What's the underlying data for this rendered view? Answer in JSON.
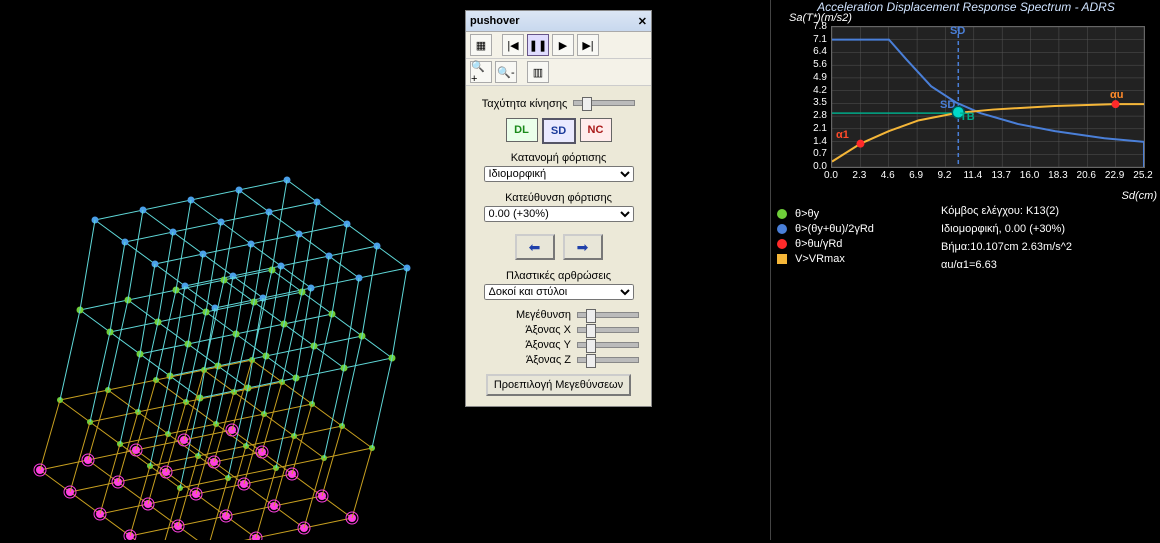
{
  "dialog": {
    "title": "pushover",
    "speed_label": "Ταχύτητα κίνησης",
    "states": {
      "DL": "DL",
      "SD": "SD",
      "NC": "NC"
    },
    "load_dist_label": "Κατανομή φόρτισης",
    "load_dist_value": "Ιδιομορφική",
    "load_dir_label": "Κατεύθυνση φόρτισης",
    "load_dir_value": "0.00 (+30%)",
    "plastic_hinges_label": "Πλαστικές αρθρώσεις",
    "plastic_hinges_value": "Δοκοί και στύλοι",
    "mag_label": "Μεγέθυνση",
    "axisX_label": "Άξονας X",
    "axisY_label": "Άξονας Y",
    "axisZ_label": "Άξονας Z",
    "preset_btn": "Προεπιλογή Μεγεθύνσεων"
  },
  "adrs": {
    "title": "Acceleration Displacement Response Spectrum - ADRS",
    "y_axis": "Sa(T*)(m/s2)",
    "x_axis": "Sd(cm)",
    "y_ticks": [
      "0.0",
      "0.7",
      "1.4",
      "2.1",
      "2.8",
      "3.5",
      "4.2",
      "4.9",
      "5.6",
      "6.4",
      "7.1",
      "7.8"
    ],
    "x_ticks": [
      "0.0",
      "2.3",
      "4.6",
      "6.9",
      "9.2",
      "11.4",
      "13.7",
      "16.0",
      "18.3",
      "20.6",
      "22.9",
      "25.2"
    ],
    "annotations": {
      "SD_top": "SD",
      "SD_mid": "SD",
      "TB": "TB",
      "au": "αu",
      "a1": "α1"
    },
    "colors": {
      "demand_curve": "#4a7fd8",
      "capacity_curve": "#f5b638",
      "point_red": "#ff2a2a",
      "point_cyan": "#00d8c8",
      "grid": "#555555",
      "bg": "#111111"
    },
    "demand_curve": [
      [
        0,
        7.1
      ],
      [
        4.6,
        7.1
      ],
      [
        6.0,
        6.0
      ],
      [
        8.0,
        4.5
      ],
      [
        10.0,
        3.6
      ],
      [
        12.0,
        3.0
      ],
      [
        15.0,
        2.4
      ],
      [
        18.0,
        2.0
      ],
      [
        22.0,
        1.6
      ],
      [
        25.2,
        1.4
      ]
    ],
    "capacity_curve": [
      [
        0,
        0.3
      ],
      [
        2.3,
        1.3
      ],
      [
        4.6,
        2.0
      ],
      [
        7.0,
        2.6
      ],
      [
        10.0,
        3.0
      ],
      [
        13.0,
        3.2
      ],
      [
        18.0,
        3.4
      ],
      [
        22.9,
        3.5
      ],
      [
        25.2,
        3.5
      ]
    ],
    "green_line_y": 3.0,
    "markers": {
      "red1": [
        2.3,
        1.3
      ],
      "red2": [
        22.9,
        3.5
      ],
      "cyan": [
        10.2,
        3.05
      ]
    },
    "sd_vline_x": 10.2,
    "xlim": [
      0,
      25.2
    ],
    "ylim": [
      0,
      7.8
    ]
  },
  "legend": [
    {
      "color": "#6fcf3a",
      "shape": "dot",
      "text": "θ>θy"
    },
    {
      "color": "#4a7fd8",
      "shape": "dot",
      "text": "θ>(θy+θu)/2γRd"
    },
    {
      "color": "#ff2a2a",
      "shape": "dot",
      "text": "θ>θu/γRd"
    },
    {
      "color": "#f5b638",
      "shape": "sq",
      "text": "V>VRmax"
    }
  ],
  "info": {
    "line1": "Κόμβος ελέγχου: K13(2)",
    "line2": "Ιδιομορφική, 0.00 (+30%)",
    "line3": "Βήμα:10.107cm 2.63m/s^2",
    "line4": "αu/α1=6.63"
  },
  "model": {
    "top_node_color": "#4a9fe8",
    "mid_node_color": "#6fcf3a",
    "base_node_color": "#ff40e0",
    "top_line_color": "#5fd8d8",
    "brace_color": "#c8a020"
  }
}
